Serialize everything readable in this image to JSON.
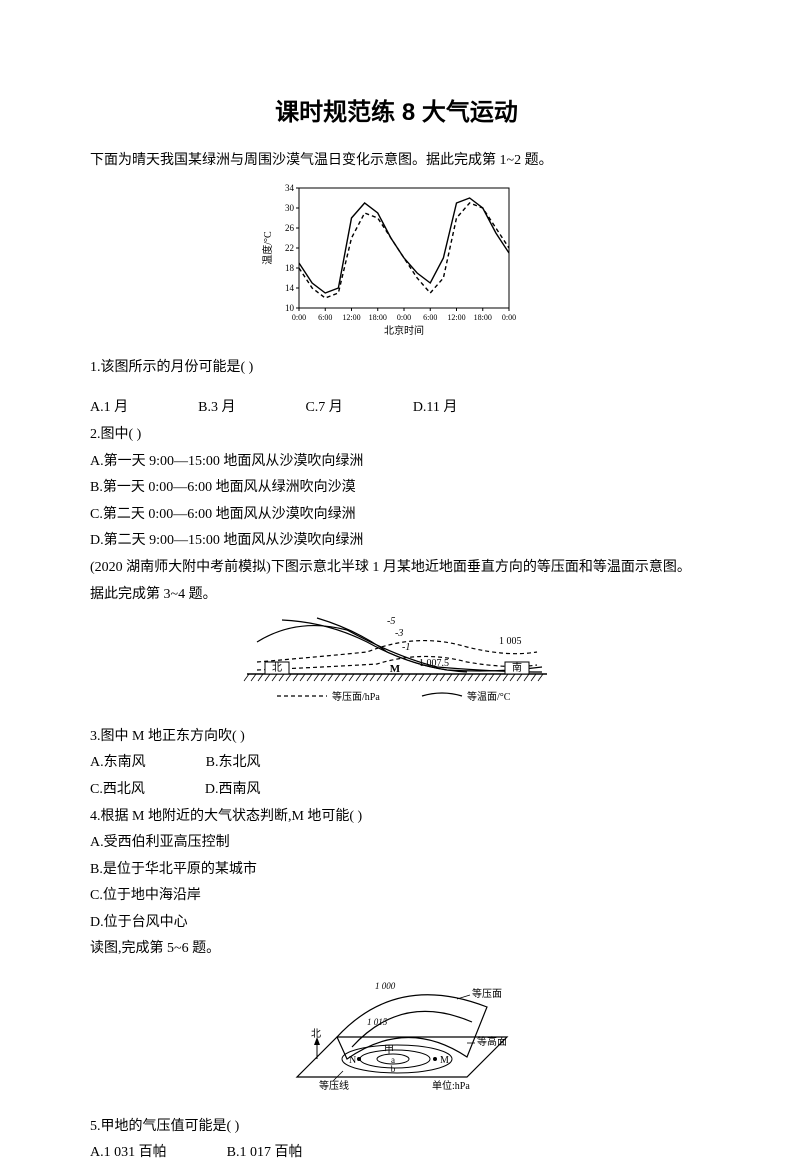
{
  "title": "课时规范练 8  大气运动",
  "intro1": "下面为晴天我国某绿洲与周围沙漠气温日变化示意图。据此完成第 1~2 题。",
  "fig1": {
    "ylabel": "温度/°C",
    "xlabel": "北京时间",
    "yticks": [
      "10",
      "14",
      "18",
      "22",
      "26",
      "30",
      "34"
    ],
    "xticks": [
      "0:00",
      "6:00",
      "12:00",
      "18:00",
      "0:00",
      "6:00",
      "12:00",
      "18:00",
      "0:00"
    ],
    "bg": "#ffffff",
    "axis_color": "#000000",
    "series_solid": [
      [
        0,
        19
      ],
      [
        30,
        15
      ],
      [
        60,
        13
      ],
      [
        90,
        14
      ],
      [
        120,
        28
      ],
      [
        150,
        31
      ],
      [
        180,
        29
      ],
      [
        210,
        24
      ],
      [
        240,
        20
      ],
      [
        270,
        17
      ],
      [
        300,
        15
      ],
      [
        330,
        20
      ],
      [
        360,
        31
      ],
      [
        390,
        32
      ],
      [
        420,
        30
      ],
      [
        450,
        25
      ],
      [
        480,
        21
      ]
    ],
    "series_dash": [
      [
        0,
        18
      ],
      [
        30,
        14
      ],
      [
        60,
        12
      ],
      [
        90,
        13
      ],
      [
        120,
        24
      ],
      [
        150,
        29
      ],
      [
        180,
        28
      ],
      [
        210,
        24
      ],
      [
        240,
        20
      ],
      [
        270,
        16
      ],
      [
        300,
        13
      ],
      [
        330,
        16
      ],
      [
        360,
        28
      ],
      [
        390,
        31
      ],
      [
        420,
        30
      ],
      [
        450,
        26
      ],
      [
        480,
        22
      ]
    ],
    "ymin": 10,
    "ymax": 34,
    "line_width": 1.4
  },
  "q1": {
    "stem": "1.该图所示的月份可能是(     )",
    "A": "A.1 月",
    "B": "B.3 月",
    "C": "C.7 月",
    "D": "D.11 月"
  },
  "q2": {
    "stem": "2.图中(     )",
    "A": "A.第一天 9:00—15:00 地面风从沙漠吹向绿洲",
    "B": "B.第一天 0:00—6:00 地面风从绿洲吹向沙漠",
    "C": "C.第二天 0:00—6:00 地面风从沙漠吹向绿洲",
    "D": "D.第二天 9:00—15:00 地面风从沙漠吹向绿洲"
  },
  "intro2a": "(2020 湖南师大附中考前模拟)下图示意北半球 1 月某地近地面垂直方向的等压面和等温面示意图。",
  "intro2b": "据此完成第 3~4 题。",
  "fig2": {
    "left_label": "北",
    "right_label": "南",
    "m_label": "M",
    "iso_labels": [
      "-5",
      "-3",
      "-1"
    ],
    "press_labels": [
      "1 005",
      "1 007.5"
    ],
    "legend_p": "等压面/hPa",
    "legend_t": "等温面/°C",
    "dash": "4 3",
    "line_width": 1.2,
    "color": "#000000"
  },
  "q3": {
    "stem": "3.图中 M 地正东方向吹(     )",
    "A": "A.东南风",
    "B": "B.东北风",
    "C": "C.西北风",
    "D": "D.西南风"
  },
  "q4": {
    "stem": "4.根据 M 地附近的大气状态判断,M 地可能(     )",
    "A": "A.受西伯利亚高压控制",
    "B": "B.是位于华北平原的某城市",
    "C": "C.位于地中海沿岸",
    "D": "D.位于台风中心"
  },
  "intro3": "读图,完成第 5~6 题。",
  "fig3": {
    "labels": {
      "north": "北",
      "N": "N",
      "M": "M",
      "a": "a",
      "b": "b",
      "jia": "甲"
    },
    "iso_labels": [
      "1 000",
      "1 015"
    ],
    "legend_iso_surface": "等压面",
    "legend_iso_line": "等压线",
    "legend_height": "等高面",
    "unit_label": "单位:hPa",
    "color": "#000000",
    "line_width": 1.2
  },
  "q5": {
    "stem": "5.甲地的气压值可能是(     )",
    "A": "A.1 031 百帕",
    "B": "B.1 017 百帕"
  }
}
